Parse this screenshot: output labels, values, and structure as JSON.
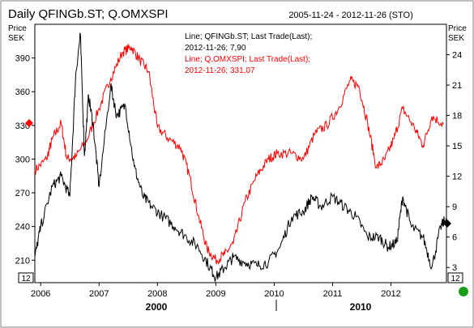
{
  "chart_data": {
    "type": "line",
    "title": "Daily QFINGb.ST; Q.OMXSPI",
    "date_range": "2005-11-24 - 2012-11-26",
    "timezone": "(STO)",
    "left_axis": {
      "label_line1": "Price",
      "label_line2": "SEK",
      "ylim": [
        190,
        420
      ],
      "ticks": [
        "210",
        "240",
        "270",
        "300",
        "330",
        "360",
        "390"
      ]
    },
    "right_axis": {
      "label_line1": "Price",
      "label_line2": "SEK",
      "ylim": [
        1.5,
        27
      ],
      "ticks": [
        "3",
        "6",
        "9",
        "12",
        "15",
        "18",
        "21",
        "24"
      ]
    },
    "x_ticks": [
      "2006",
      "2007",
      "2008",
      "2009",
      "2010",
      "2011",
      "2012"
    ],
    "era_labels": [
      "2000",
      "2010"
    ],
    "left_badge": "12",
    "bottom_badge": "12",
    "legend": {
      "line1": "Line; QFINGb.ST; Last Trade(Last);",
      "line2": "2012-11-26; 7,90",
      "line3": "Line; Q.OMXSPI; Last Trade(Last);",
      "line4": "2012-11-26; 331,07"
    },
    "colors": {
      "qfin": "#000000",
      "omx": "#ff0000",
      "dot": "#1a9e1a"
    },
    "series": [
      {
        "name": "Q.OMXSPI",
        "axis": "left",
        "color": "#ff0000",
        "x": [
          2005.9,
          2006.1,
          2006.2,
          2006.35,
          2006.45,
          2006.6,
          2006.8,
          2007.0,
          2007.2,
          2007.4,
          2007.55,
          2007.7,
          2007.85,
          2008.0,
          2008.2,
          2008.4,
          2008.55,
          2008.7,
          2008.85,
          2009.0,
          2009.15,
          2009.3,
          2009.5,
          2009.7,
          2009.9,
          2010.05,
          2010.3,
          2010.5,
          2010.7,
          2010.9,
          2011.1,
          2011.3,
          2011.45,
          2011.6,
          2011.75,
          2011.9,
          2012.05,
          2012.2,
          2012.4,
          2012.55,
          2012.7,
          2012.9
        ],
        "y": [
          290,
          300,
          318,
          332,
          300,
          302,
          318,
          345,
          372,
          395,
          400,
          388,
          378,
          328,
          318,
          310,
          285,
          250,
          220,
          210,
          215,
          225,
          262,
          285,
          300,
          305,
          305,
          300,
          323,
          330,
          345,
          370,
          365,
          332,
          292,
          300,
          318,
          345,
          328,
          312,
          338,
          331
        ]
      },
      {
        "name": "QFINGb.ST",
        "axis": "right",
        "color": "#000000",
        "x": [
          2005.9,
          2006.0,
          2006.2,
          2006.35,
          2006.5,
          2006.6,
          2006.68,
          2006.75,
          2006.82,
          2006.9,
          2007.0,
          2007.2,
          2007.3,
          2007.45,
          2007.6,
          2007.75,
          2007.9,
          2008.1,
          2008.3,
          2008.5,
          2008.7,
          2008.9,
          2009.0,
          2009.15,
          2009.3,
          2009.5,
          2009.7,
          2009.9,
          2010.1,
          2010.3,
          2010.5,
          2010.65,
          2010.8,
          2011.0,
          2011.2,
          2011.4,
          2011.6,
          2011.8,
          2011.95,
          2012.1,
          2012.2,
          2012.35,
          2012.55,
          2012.7,
          2012.85,
          2012.95
        ],
        "y": [
          4,
          7,
          11,
          12,
          10,
          22,
          26,
          14,
          20,
          17,
          11,
          21,
          18,
          19,
          13,
          10,
          9,
          8,
          7,
          6,
          5,
          3,
          2,
          3,
          4,
          3.5,
          3.2,
          3.5,
          5,
          8,
          8.5,
          10,
          9,
          10,
          9,
          8,
          6,
          6,
          5,
          5.5,
          10,
          7,
          6,
          3,
          7,
          7.9
        ]
      }
    ]
  }
}
